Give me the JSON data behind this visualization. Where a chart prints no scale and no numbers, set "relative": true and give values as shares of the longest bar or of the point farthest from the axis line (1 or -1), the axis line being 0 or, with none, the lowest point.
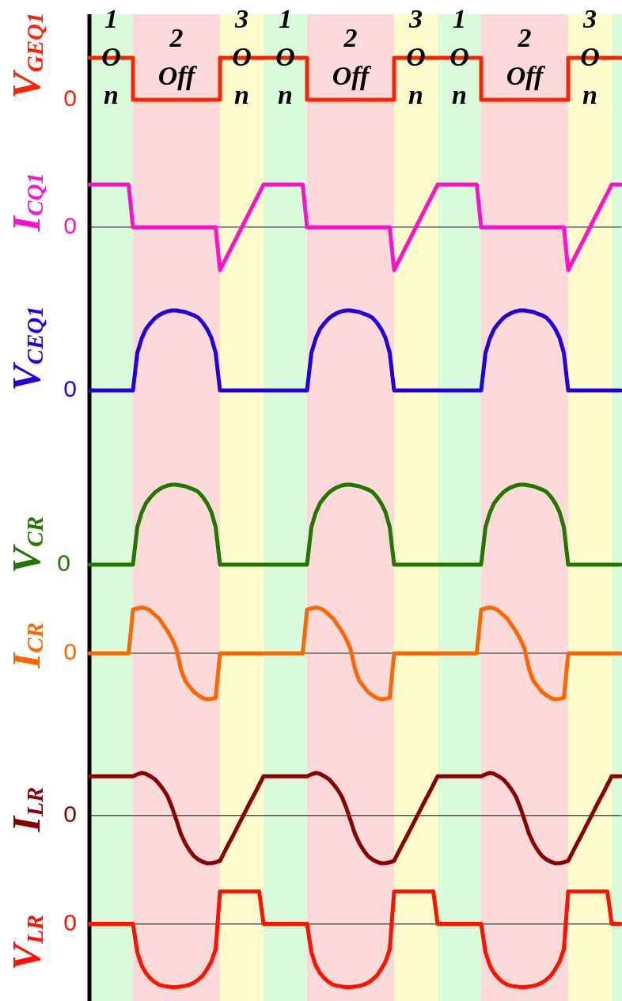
{
  "chart_data": [
    {
      "type": "step",
      "relative": true,
      "tick_labels": false,
      "ylabel": "V$_{GEQ1}$",
      "color": "#ff2200",
      "annotations": [
        "0",
        "1 On",
        "2 Off",
        "3 On",
        "1 On",
        "2 Off",
        "3 On",
        "1 On",
        "2 Off",
        "3 On"
      ],
      "categories": [
        null,
        null,
        null,
        null,
        null,
        null,
        null,
        null,
        null,
        null,
        null,
        null,
        null,
        null,
        null,
        null,
        null,
        null,
        null,
        null,
        null,
        null,
        null,
        null,
        null,
        null,
        null,
        null,
        null,
        null,
        null,
        null,
        null,
        null,
        null,
        null,
        null,
        null,
        null,
        null,
        null,
        null,
        null,
        null,
        null,
        null,
        null,
        null,
        null,
        null,
        null,
        null,
        null,
        null,
        null,
        null,
        null,
        null,
        null,
        null,
        null,
        null,
        null,
        null,
        null,
        null,
        null,
        null,
        null,
        null,
        null,
        null,
        null,
        null,
        null,
        null,
        null,
        null,
        null,
        null,
        null,
        null,
        null,
        null,
        null,
        null,
        null,
        null,
        null,
        null,
        null,
        null,
        null,
        null,
        null,
        null,
        null,
        null,
        null,
        null,
        null,
        null,
        null,
        null,
        null,
        null,
        null,
        null,
        null,
        null,
        null,
        null,
        null,
        null,
        null,
        null,
        null,
        null,
        null,
        null,
        null,
        null,
        null
      ],
      "values": [
        1,
        1,
        1,
        1,
        1,
        1,
        1,
        1,
        1,
        1,
        0,
        0,
        0,
        0,
        0,
        0,
        0,
        0,
        0,
        0,
        0,
        0,
        0,
        0,
        0,
        0,
        0,
        0,
        0,
        0,
        1,
        1,
        1,
        1,
        1,
        1,
        1,
        1,
        1,
        1,
        1,
        1,
        1,
        1,
        1,
        1,
        1,
        1,
        1,
        1,
        0,
        0,
        0,
        0,
        0,
        0,
        0,
        0,
        0,
        0,
        0,
        0,
        0,
        0,
        0,
        0,
        0,
        0,
        0,
        0,
        1,
        1,
        1,
        1,
        1,
        1,
        1,
        1,
        1,
        1,
        1,
        1,
        1,
        1,
        1,
        1,
        1,
        1,
        1,
        1,
        0,
        0,
        0,
        0,
        0,
        0,
        0,
        0,
        0,
        0,
        0,
        0,
        0,
        0,
        0,
        0,
        0,
        0,
        0,
        0,
        1,
        1,
        1,
        1,
        1,
        1,
        1,
        1,
        1,
        1,
        1,
        1,
        1
      ]
    },
    {
      "type": "line",
      "relative": true,
      "tick_labels": false,
      "ylabel": "I$_{CQ1}$",
      "color": "#ff11cc",
      "annotations": [
        "0"
      ],
      "categories": [
        null,
        null,
        null,
        null,
        null,
        null,
        null,
        null,
        null,
        null,
        null,
        null,
        null,
        null,
        null,
        null,
        null,
        null,
        null,
        null,
        null,
        null,
        null,
        null,
        null,
        null,
        null,
        null,
        null,
        null,
        null,
        null,
        null,
        null,
        null,
        null,
        null,
        null,
        null,
        null,
        null,
        null,
        null,
        null,
        null,
        null,
        null,
        null,
        null,
        null,
        null,
        null,
        null,
        null,
        null,
        null,
        null,
        null,
        null,
        null,
        null,
        null,
        null,
        null,
        null,
        null,
        null,
        null,
        null,
        null,
        null,
        null,
        null,
        null,
        null,
        null,
        null,
        null,
        null,
        null,
        null,
        null,
        null,
        null,
        null,
        null,
        null,
        null,
        null,
        null,
        null,
        null,
        null,
        null,
        null,
        null,
        null,
        null,
        null,
        null,
        null,
        null,
        null,
        null,
        null,
        null,
        null,
        null,
        null,
        null,
        null,
        null,
        null,
        null,
        null,
        null,
        null,
        null,
        null,
        null,
        null,
        null,
        null
      ],
      "values": [
        1,
        1,
        1,
        1,
        1,
        1,
        1,
        1,
        1,
        1,
        0,
        0,
        0,
        0,
        0,
        0,
        0,
        0,
        0,
        0,
        0,
        0,
        0,
        0,
        0,
        0,
        0,
        0,
        0,
        0,
        -1,
        -0.8,
        -0.6,
        -0.4,
        -0.2,
        0,
        0.2,
        0.4,
        0.6,
        0.8,
        1,
        1,
        1,
        1,
        1,
        1,
        1,
        1,
        1,
        1,
        0,
        0,
        0,
        0,
        0,
        0,
        0,
        0,
        0,
        0,
        0,
        0,
        0,
        0,
        0,
        0,
        0,
        0,
        0,
        0,
        -1,
        -0.8,
        -0.6,
        -0.4,
        -0.2,
        0,
        0.2,
        0.4,
        0.6,
        0.8,
        1,
        1,
        1,
        1,
        1,
        1,
        1,
        1,
        1,
        1,
        0,
        0,
        0,
        0,
        0,
        0,
        0,
        0,
        0,
        0,
        0,
        0,
        0,
        0,
        0,
        0,
        0,
        0,
        0,
        0,
        -1,
        -0.8,
        -0.6,
        -0.4,
        -0.2,
        0,
        0.2,
        0.4,
        0.6,
        0.8,
        1,
        1,
        1
      ]
    },
    {
      "type": "line",
      "relative": true,
      "tick_labels": false,
      "ylabel": "V$_{CEQ1}$",
      "color": "#2200dd",
      "annotations": [
        "0"
      ],
      "categories": [
        null,
        null,
        null,
        null,
        null,
        null,
        null,
        null,
        null,
        null,
        null,
        null,
        null,
        null,
        null,
        null,
        null,
        null,
        null,
        null,
        null,
        null,
        null,
        null,
        null,
        null,
        null,
        null,
        null,
        null,
        null,
        null,
        null,
        null,
        null,
        null,
        null,
        null,
        null,
        null,
        null,
        null,
        null,
        null,
        null,
        null,
        null,
        null,
        null,
        null,
        null,
        null,
        null,
        null,
        null,
        null,
        null,
        null,
        null,
        null,
        null,
        null,
        null,
        null,
        null,
        null,
        null,
        null,
        null,
        null,
        null,
        null,
        null,
        null,
        null,
        null,
        null,
        null,
        null,
        null,
        null,
        null,
        null,
        null,
        null,
        null,
        null,
        null,
        null,
        null,
        null,
        null,
        null,
        null,
        null,
        null,
        null,
        null,
        null,
        null,
        null,
        null,
        null,
        null,
        null,
        null,
        null,
        null,
        null,
        null,
        null,
        null,
        null,
        null,
        null,
        null,
        null,
        null,
        null,
        null,
        null,
        null,
        null
      ],
      "values": [
        0,
        0,
        0,
        0,
        0,
        0,
        0,
        0,
        0,
        0,
        0,
        0.47,
        0.65,
        0.77,
        0.84,
        0.9,
        0.94,
        0.97,
        0.99,
        1,
        1,
        0.99,
        0.98,
        0.96,
        0.94,
        0.91,
        0.85,
        0.77,
        0.66,
        0.47,
        0,
        0,
        0,
        0,
        0,
        0,
        0,
        0,
        0,
        0,
        0,
        0,
        0,
        0,
        0,
        0,
        0,
        0,
        0,
        0,
        0,
        0.47,
        0.65,
        0.77,
        0.84,
        0.9,
        0.94,
        0.97,
        0.99,
        1,
        1,
        0.99,
        0.98,
        0.96,
        0.94,
        0.91,
        0.85,
        0.77,
        0.66,
        0.47,
        0,
        0,
        0,
        0,
        0,
        0,
        0,
        0,
        0,
        0,
        0,
        0,
        0,
        0,
        0,
        0,
        0,
        0,
        0,
        0,
        0,
        0.47,
        0.65,
        0.77,
        0.84,
        0.9,
        0.94,
        0.97,
        0.99,
        1,
        1,
        0.99,
        0.98,
        0.96,
        0.94,
        0.91,
        0.85,
        0.77,
        0.66,
        0.47,
        0,
        0,
        0,
        0,
        0,
        0,
        0,
        0,
        0,
        0,
        0,
        0,
        0
      ]
    },
    {
      "type": "line",
      "relative": true,
      "tick_labels": false,
      "ylabel": "V$_{CR}$",
      "color": "#227700",
      "annotations": [
        "0"
      ],
      "categories": [
        null,
        null,
        null,
        null,
        null,
        null,
        null,
        null,
        null,
        null,
        null,
        null,
        null,
        null,
        null,
        null,
        null,
        null,
        null,
        null,
        null,
        null,
        null,
        null,
        null,
        null,
        null,
        null,
        null,
        null,
        null,
        null,
        null,
        null,
        null,
        null,
        null,
        null,
        null,
        null,
        null,
        null,
        null,
        null,
        null,
        null,
        null,
        null,
        null,
        null,
        null,
        null,
        null,
        null,
        null,
        null,
        null,
        null,
        null,
        null,
        null,
        null,
        null,
        null,
        null,
        null,
        null,
        null,
        null,
        null,
        null,
        null,
        null,
        null,
        null,
        null,
        null,
        null,
        null,
        null,
        null,
        null,
        null,
        null,
        null,
        null,
        null,
        null,
        null,
        null,
        null,
        null,
        null,
        null,
        null,
        null,
        null,
        null,
        null,
        null,
        null,
        null,
        null,
        null,
        null,
        null,
        null,
        null,
        null,
        null,
        null,
        null,
        null,
        null,
        null,
        null,
        null,
        null,
        null,
        null,
        null,
        null,
        null
      ],
      "values": [
        0,
        0,
        0,
        0,
        0,
        0,
        0,
        0,
        0,
        0,
        0,
        0.47,
        0.65,
        0.77,
        0.84,
        0.9,
        0.94,
        0.97,
        0.99,
        1,
        1,
        0.99,
        0.98,
        0.96,
        0.94,
        0.91,
        0.85,
        0.77,
        0.66,
        0.47,
        0,
        0,
        0,
        0,
        0,
        0,
        0,
        0,
        0,
        0,
        0,
        0,
        0,
        0,
        0,
        0,
        0,
        0,
        0,
        0,
        0,
        0.47,
        0.65,
        0.77,
        0.84,
        0.9,
        0.94,
        0.97,
        0.99,
        1,
        1,
        0.99,
        0.98,
        0.96,
        0.94,
        0.91,
        0.85,
        0.77,
        0.66,
        0.47,
        0,
        0,
        0,
        0,
        0,
        0,
        0,
        0,
        0,
        0,
        0,
        0,
        0,
        0,
        0,
        0,
        0,
        0,
        0,
        0,
        0,
        0.47,
        0.65,
        0.77,
        0.84,
        0.9,
        0.94,
        0.97,
        0.99,
        1,
        1,
        0.99,
        0.98,
        0.96,
        0.94,
        0.91,
        0.85,
        0.77,
        0.66,
        0.47,
        0,
        0,
        0,
        0,
        0,
        0,
        0,
        0,
        0,
        0,
        0,
        0,
        0
      ]
    },
    {
      "type": "line",
      "relative": true,
      "tick_labels": false,
      "ylabel": "I$_{CR}$",
      "color": "#ff6600",
      "annotations": [
        "0"
      ],
      "categories": [
        null,
        null,
        null,
        null,
        null,
        null,
        null,
        null,
        null,
        null,
        null,
        null,
        null,
        null,
        null,
        null,
        null,
        null,
        null,
        null,
        null,
        null,
        null,
        null,
        null,
        null,
        null,
        null,
        null,
        null,
        null,
        null,
        null,
        null,
        null,
        null,
        null,
        null,
        null,
        null,
        null,
        null,
        null,
        null,
        null,
        null,
        null,
        null,
        null,
        null,
        null,
        null,
        null,
        null,
        null,
        null,
        null,
        null,
        null,
        null,
        null,
        null,
        null,
        null,
        null,
        null,
        null,
        null,
        null,
        null,
        null,
        null,
        null,
        null,
        null,
        null,
        null,
        null,
        null,
        null,
        null,
        null,
        null,
        null,
        null,
        null,
        null,
        null,
        null,
        null,
        null,
        null,
        null,
        null,
        null,
        null,
        null,
        null,
        null,
        null,
        null,
        null,
        null,
        null,
        null,
        null,
        null,
        null,
        null,
        null,
        null,
        null,
        null,
        null,
        null,
        null,
        null,
        null,
        null,
        null,
        null,
        null,
        null
      ],
      "values": [
        0,
        0,
        0,
        0,
        0,
        0,
        0,
        0,
        0,
        0,
        0.95,
        0.98,
        1,
        0.98,
        0.93,
        0.84,
        0.76,
        0.62,
        0.48,
        0.31,
        0.09,
        -0.34,
        -0.6,
        -0.72,
        -0.84,
        -0.91,
        -0.97,
        -1,
        -0.99,
        -0.97,
        0,
        0,
        0,
        0,
        0,
        0,
        0,
        0,
        0,
        0,
        0,
        0,
        0,
        0,
        0,
        0,
        0,
        0,
        0,
        0,
        0.95,
        0.98,
        1,
        0.98,
        0.93,
        0.84,
        0.76,
        0.62,
        0.48,
        0.31,
        0.09,
        -0.34,
        -0.6,
        -0.72,
        -0.84,
        -0.91,
        -0.97,
        -1,
        -0.99,
        -0.97,
        0,
        0,
        0,
        0,
        0,
        0,
        0,
        0,
        0,
        0,
        0,
        0,
        0,
        0,
        0,
        0,
        0,
        0,
        0,
        0,
        0.95,
        0.98,
        1,
        0.98,
        0.93,
        0.84,
        0.76,
        0.62,
        0.48,
        0.31,
        0.09,
        -0.34,
        -0.6,
        -0.72,
        -0.84,
        -0.91,
        -0.97,
        -1,
        -0.99,
        -0.97,
        0,
        0,
        0,
        0,
        0,
        0,
        0,
        0,
        0,
        0,
        0,
        0,
        0
      ]
    },
    {
      "type": "line",
      "relative": true,
      "tick_labels": false,
      "ylabel": "I$_{LR}$",
      "color": "#880000",
      "annotations": [
        "0"
      ],
      "categories": [
        null,
        null,
        null,
        null,
        null,
        null,
        null,
        null,
        null,
        null,
        null,
        null,
        null,
        null,
        null,
        null,
        null,
        null,
        null,
        null,
        null,
        null,
        null,
        null,
        null,
        null,
        null,
        null,
        null,
        null,
        null,
        null,
        null,
        null,
        null,
        null,
        null,
        null,
        null,
        null,
        null,
        null,
        null,
        null,
        null,
        null,
        null,
        null,
        null,
        null,
        null,
        null,
        null,
        null,
        null,
        null,
        null,
        null,
        null,
        null,
        null,
        null,
        null,
        null,
        null,
        null,
        null,
        null,
        null,
        null,
        null,
        null,
        null,
        null,
        null,
        null,
        null,
        null,
        null,
        null,
        null,
        null,
        null,
        null,
        null,
        null,
        null,
        null,
        null,
        null,
        null,
        null,
        null,
        null,
        null,
        null,
        null,
        null,
        null,
        null,
        null,
        null,
        null,
        null,
        null,
        null,
        null,
        null,
        null,
        null,
        null,
        null,
        null,
        null,
        null,
        null,
        null,
        null,
        null,
        null,
        null,
        null,
        null
      ],
      "values": [
        0.83,
        0.83,
        0.83,
        0.83,
        0.83,
        0.83,
        0.83,
        0.83,
        0.83,
        0.83,
        0.83,
        0.87,
        0.9,
        0.88,
        0.83,
        0.77,
        0.67,
        0.55,
        0.4,
        0.17,
        -0.1,
        -0.38,
        -0.58,
        -0.73,
        -0.85,
        -0.92,
        -0.97,
        -1,
        -1,
        -0.98,
        -0.95,
        -0.77,
        -0.59,
        -0.42,
        -0.24,
        -0.06,
        0.12,
        0.3,
        0.47,
        0.65,
        0.83,
        0.83,
        0.83,
        0.83,
        0.83,
        0.83,
        0.83,
        0.83,
        0.83,
        0.83,
        0.83,
        0.87,
        0.9,
        0.88,
        0.83,
        0.77,
        0.67,
        0.55,
        0.4,
        0.17,
        -0.1,
        -0.38,
        -0.58,
        -0.73,
        -0.85,
        -0.92,
        -0.97,
        -1,
        -1,
        -0.98,
        -0.95,
        -0.77,
        -0.59,
        -0.42,
        -0.24,
        -0.06,
        0.12,
        0.3,
        0.47,
        0.65,
        0.83,
        0.83,
        0.83,
        0.83,
        0.83,
        0.83,
        0.83,
        0.83,
        0.83,
        0.83,
        0.83,
        0.87,
        0.9,
        0.88,
        0.83,
        0.77,
        0.67,
        0.55,
        0.4,
        0.17,
        -0.1,
        -0.38,
        -0.58,
        -0.73,
        -0.85,
        -0.92,
        -0.97,
        -1,
        -1,
        -0.98,
        -0.95,
        -0.77,
        -0.59,
        -0.42,
        -0.24,
        -0.06,
        0.12,
        0.3,
        0.47,
        0.65,
        0.83,
        0.83,
        0.83
      ]
    },
    {
      "type": "line",
      "relative": true,
      "tick_labels": false,
      "ylabel": "V$_{LR}$",
      "color": "#ff1100",
      "annotations": [
        "0"
      ],
      "categories": [
        null,
        null,
        null,
        null,
        null,
        null,
        null,
        null,
        null,
        null,
        null,
        null,
        null,
        null,
        null,
        null,
        null,
        null,
        null,
        null,
        null,
        null,
        null,
        null,
        null,
        null,
        null,
        null,
        null,
        null,
        null,
        null,
        null,
        null,
        null,
        null,
        null,
        null,
        null,
        null,
        null,
        null,
        null,
        null,
        null,
        null,
        null,
        null,
        null,
        null,
        null,
        null,
        null,
        null,
        null,
        null,
        null,
        null,
        null,
        null,
        null,
        null,
        null,
        null,
        null,
        null,
        null,
        null,
        null,
        null,
        null,
        null,
        null,
        null,
        null,
        null,
        null,
        null,
        null,
        null,
        null,
        null,
        null,
        null,
        null,
        null,
        null,
        null,
        null,
        null,
        null,
        null,
        null,
        null,
        null,
        null,
        null,
        null,
        null,
        null,
        null,
        null,
        null,
        null,
        null,
        null,
        null,
        null,
        null,
        null,
        null,
        null,
        null,
        null,
        null,
        null,
        null,
        null,
        null,
        null,
        null,
        null,
        null
      ],
      "values": [
        0,
        0,
        0,
        0,
        0,
        0,
        0,
        0,
        0,
        0,
        0,
        -0.45,
        -0.66,
        -0.78,
        -0.86,
        -0.92,
        -0.96,
        -0.98,
        -0.99,
        -1,
        -1,
        -0.99,
        -0.98,
        -0.96,
        -0.93,
        -0.88,
        -0.82,
        -0.72,
        -0.6,
        -0.4,
        0.51,
        0.51,
        0.51,
        0.51,
        0.51,
        0.51,
        0.51,
        0.51,
        0.51,
        0.51,
        0,
        0,
        0,
        0,
        0,
        0,
        0,
        0,
        0,
        0,
        0,
        -0.45,
        -0.66,
        -0.78,
        -0.86,
        -0.92,
        -0.96,
        -0.98,
        -0.99,
        -1,
        -1,
        -0.99,
        -0.98,
        -0.96,
        -0.93,
        -0.88,
        -0.82,
        -0.72,
        -0.6,
        -0.4,
        0.51,
        0.51,
        0.51,
        0.51,
        0.51,
        0.51,
        0.51,
        0.51,
        0.51,
        0.51,
        0,
        0,
        0,
        0,
        0,
        0,
        0,
        0,
        0,
        0,
        0,
        -0.45,
        -0.66,
        -0.78,
        -0.86,
        -0.92,
        -0.96,
        -0.98,
        -0.99,
        -1,
        -1,
        -0.99,
        -0.98,
        -0.96,
        -0.93,
        -0.88,
        -0.82,
        -0.72,
        -0.6,
        -0.4,
        0.51,
        0.51,
        0.51,
        0.51,
        0.51,
        0.51,
        0.51,
        0.51,
        0.51,
        0.51,
        0,
        0,
        0
      ]
    }
  ]
}
